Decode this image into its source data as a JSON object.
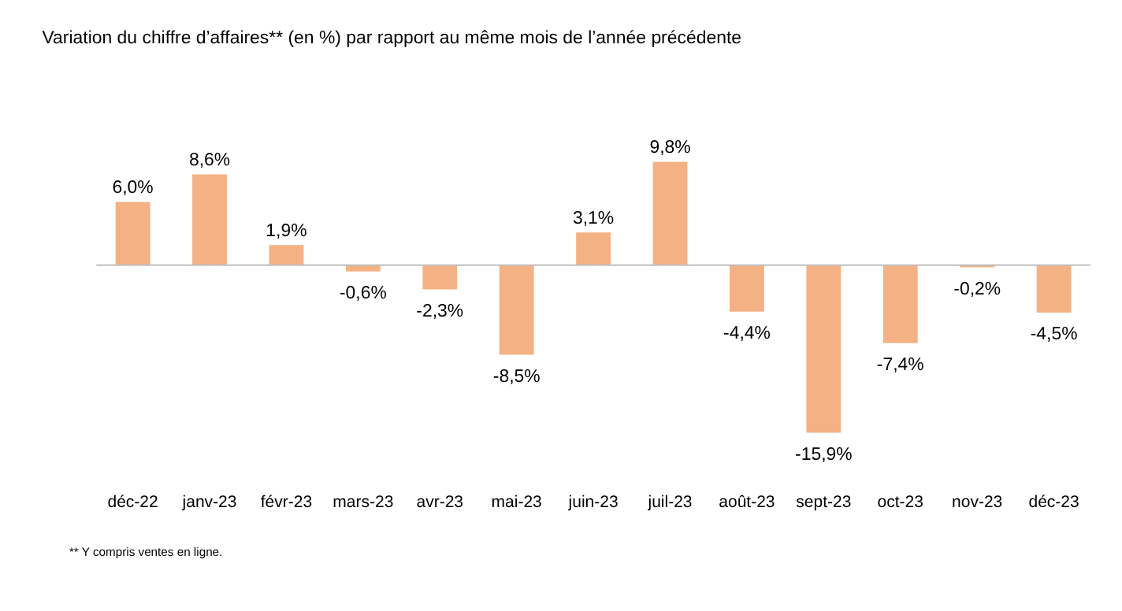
{
  "chart_data": {
    "type": "bar",
    "title": "Variation du chiffre d’affaires** (en %) par rapport au même mois de l’année précédente",
    "categories": [
      "déc-22",
      "janv-23",
      "févr-23",
      "mars-23",
      "avr-23",
      "mai-23",
      "juin-23",
      "juil-23",
      "août-23",
      "sept-23",
      "oct-23",
      "nov-23",
      "déc-23"
    ],
    "values": [
      6.0,
      8.6,
      1.9,
      -0.6,
      -2.3,
      -8.5,
      3.1,
      9.8,
      -4.4,
      -15.9,
      -7.4,
      -0.2,
      -4.5
    ],
    "value_labels": [
      "6,0%",
      "8,6%",
      "1,9%",
      "-0,6%",
      "-2,3%",
      "-8,5%",
      "3,1%",
      "9,8%",
      "-4,4%",
      "-15,9%",
      "-7,4%",
      "-0,2%",
      "-4,5%"
    ],
    "color": "#f4b183",
    "annotations": [
      "** Y compris ventes en ligne."
    ]
  }
}
